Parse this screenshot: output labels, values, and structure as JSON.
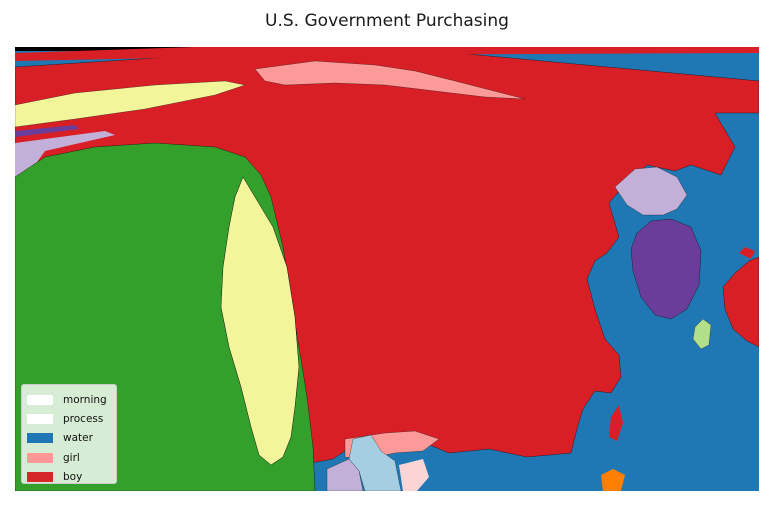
{
  "title": "U.S. Government Purchasing",
  "legend": {
    "placement": "lower-left",
    "items": [
      {
        "label": "morning",
        "color": "#ffffff"
      },
      {
        "label": "process",
        "color": "#ffffff"
      },
      {
        "label": "water",
        "color": "#1f77b4"
      },
      {
        "label": "girl",
        "color": "#ff9896"
      },
      {
        "label": "boy",
        "color": "#d62728"
      }
    ]
  },
  "colors": {
    "ocean": "#1f78b4",
    "red": "#d91f26",
    "green": "#33a02c",
    "light_yellow": "#f3f59b",
    "pink": "#fb9a99",
    "lavender": "#c2b0d8",
    "purple": "#6a3d9a",
    "light_green": "#b2df8a",
    "light_blue": "#a6cee3",
    "orange": "#ff7f00"
  }
}
